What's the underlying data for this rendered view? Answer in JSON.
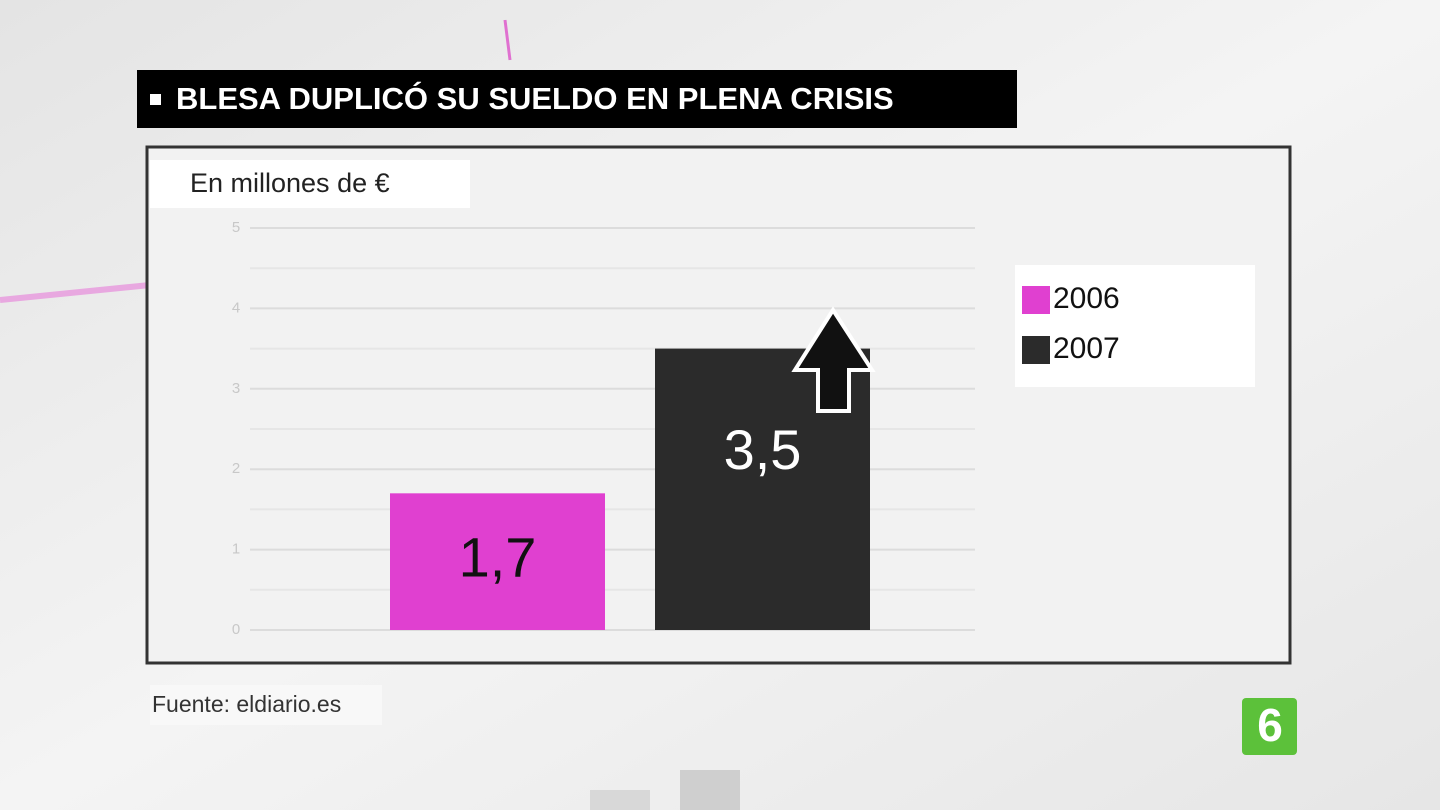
{
  "chart_data": {
    "type": "bar",
    "title": "BLESA DUPLICÓ SU SUELDO EN PLENA CRISIS",
    "subtitle": "En millones de €",
    "source": "Fuente: eldiario.es",
    "categories": [
      null
    ],
    "series": [
      {
        "name": "2006",
        "color": "#e040d0",
        "values": [
          1.7
        ],
        "value_labels": [
          "1,7"
        ]
      },
      {
        "name": "2007",
        "color": "#2b2b2b",
        "values": [
          3.5
        ],
        "value_labels": [
          "3,5"
        ]
      }
    ],
    "ylim": [
      0,
      5
    ],
    "yticks": [
      0,
      1,
      2,
      3,
      4,
      5
    ],
    "grid": true,
    "legend": "right"
  },
  "channel_logo": "6"
}
